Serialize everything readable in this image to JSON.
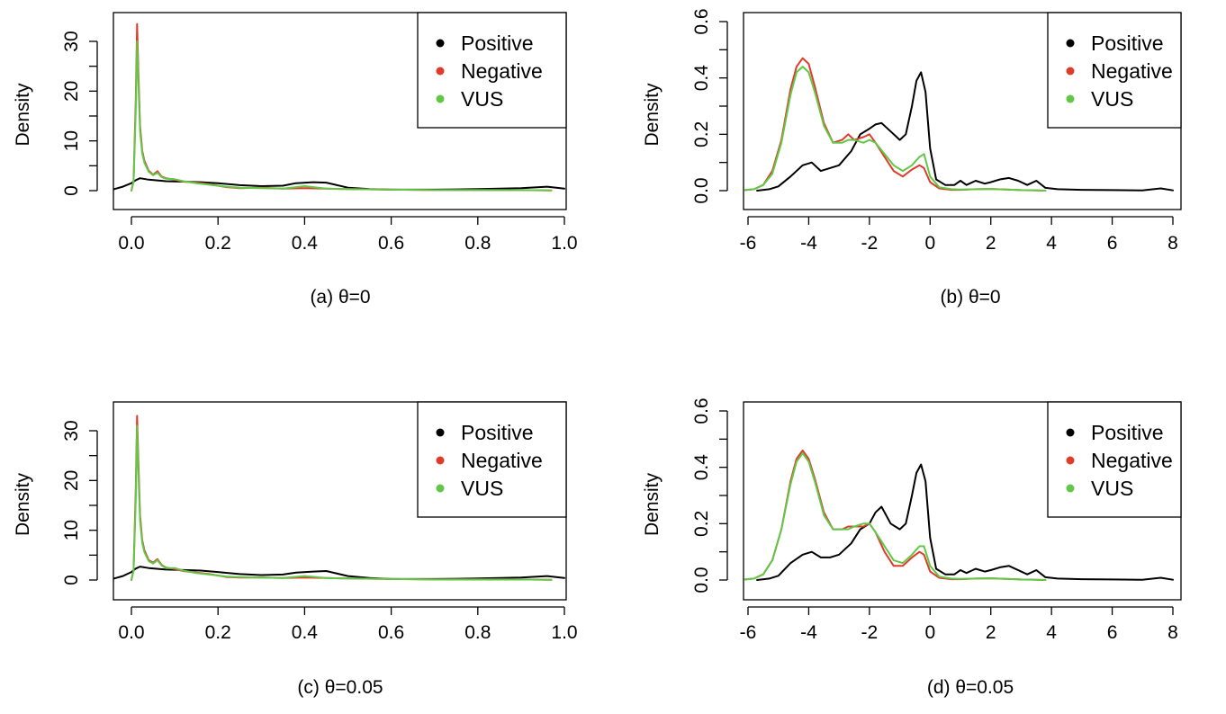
{
  "colors": {
    "Positive": "#000000",
    "Negative": "#DF3B2A",
    "VUS": "#61C847"
  },
  "chart_data": [
    {
      "type": "line",
      "caption": "(a) θ=0",
      "ylabel": "Density",
      "xlim": [
        -0.04,
        1.0
      ],
      "ylim": [
        0,
        33.7
      ],
      "xticks": [
        0.0,
        0.2,
        0.4,
        0.6,
        0.8,
        1.0
      ],
      "xtick_labels": [
        "0.0",
        "0.2",
        "0.4",
        "0.6",
        "0.8",
        "1.0"
      ],
      "yticks": [
        0,
        10,
        20,
        30
      ],
      "ytick_labels": [
        "0",
        "10",
        "20",
        "30"
      ],
      "yminor": [
        5,
        15,
        25
      ],
      "legend": {
        "position": "top-right",
        "entries": [
          "Positive",
          "Negative",
          "VUS"
        ]
      },
      "series": [
        {
          "name": "Positive",
          "x": [
            -0.04,
            -0.02,
            0.0,
            0.01,
            0.02,
            0.04,
            0.08,
            0.12,
            0.16,
            0.2,
            0.25,
            0.3,
            0.35,
            0.38,
            0.42,
            0.45,
            0.5,
            0.55,
            0.6,
            0.7,
            0.8,
            0.9,
            0.96,
            1.0
          ],
          "y": [
            0.3,
            0.8,
            1.5,
            2.1,
            2.5,
            2.2,
            1.9,
            1.8,
            1.7,
            1.5,
            1.1,
            0.9,
            1.0,
            1.5,
            1.7,
            1.6,
            0.6,
            0.3,
            0.2,
            0.2,
            0.3,
            0.5,
            0.8,
            0.4
          ]
        },
        {
          "name": "Negative",
          "x": [
            0.0,
            0.005,
            0.01,
            0.013,
            0.016,
            0.02,
            0.025,
            0.03,
            0.04,
            0.05,
            0.06,
            0.07,
            0.08,
            0.1,
            0.12,
            0.15,
            0.18,
            0.2,
            0.22,
            0.25,
            0.3,
            0.35,
            0.4,
            0.45,
            0.5,
            0.6,
            0.7,
            0.8,
            0.9,
            0.97
          ],
          "y": [
            0,
            2,
            18,
            33.5,
            24,
            13,
            8,
            6,
            4,
            3.2,
            3.9,
            2.8,
            2.5,
            2.2,
            1.8,
            1.6,
            1.3,
            1.0,
            0.7,
            0.5,
            0.6,
            0.4,
            0.5,
            0.4,
            0.3,
            0.2,
            0.1,
            0.1,
            0.1,
            0.05
          ]
        },
        {
          "name": "VUS",
          "x": [
            0.0,
            0.005,
            0.01,
            0.013,
            0.016,
            0.02,
            0.025,
            0.03,
            0.04,
            0.05,
            0.06,
            0.07,
            0.08,
            0.1,
            0.12,
            0.15,
            0.18,
            0.2,
            0.22,
            0.25,
            0.3,
            0.35,
            0.4,
            0.45,
            0.5,
            0.6,
            0.7,
            0.8,
            0.9,
            0.97
          ],
          "y": [
            0,
            1.8,
            16,
            30,
            22,
            12,
            7.5,
            5.6,
            3.8,
            3.1,
            3.6,
            2.7,
            2.4,
            2.3,
            1.9,
            1.5,
            1.2,
            1.0,
            0.8,
            0.6,
            0.5,
            0.4,
            0.9,
            0.4,
            0.3,
            0.2,
            0.1,
            0.1,
            0.1,
            0.05
          ]
        }
      ]
    },
    {
      "type": "line",
      "caption": "(b) θ=0",
      "ylabel": "Density",
      "xlim": [
        -6.2,
        8.2
      ],
      "ylim": [
        0,
        0.61
      ],
      "xticks": [
        -6,
        -4,
        -2,
        0,
        2,
        4,
        6,
        8
      ],
      "xtick_labels": [
        "-6",
        "-4",
        "-2",
        "0",
        "2",
        "4",
        "6",
        "8"
      ],
      "yticks": [
        0.0,
        0.2,
        0.4,
        0.6
      ],
      "ytick_labels": [
        "0.0",
        "0.2",
        "0.4",
        "0.6"
      ],
      "yminor": [
        0.1,
        0.3,
        0.5
      ],
      "legend": {
        "position": "top-right",
        "entries": [
          "Positive",
          "Negative",
          "VUS"
        ]
      },
      "series": [
        {
          "name": "Positive",
          "x": [
            -5.7,
            -5.3,
            -5.0,
            -4.6,
            -4.2,
            -3.9,
            -3.6,
            -3.3,
            -3.0,
            -2.6,
            -2.3,
            -2.0,
            -1.8,
            -1.6,
            -1.3,
            -1.0,
            -0.8,
            -0.6,
            -0.45,
            -0.3,
            -0.15,
            0.0,
            0.2,
            0.5,
            0.8,
            1.0,
            1.2,
            1.5,
            1.8,
            2.0,
            2.3,
            2.6,
            2.9,
            3.2,
            3.5,
            3.8,
            4.2,
            5.0,
            6.0,
            7.0,
            7.6,
            8.0
          ],
          "y": [
            0,
            0.005,
            0.015,
            0.05,
            0.09,
            0.1,
            0.07,
            0.08,
            0.09,
            0.14,
            0.2,
            0.22,
            0.235,
            0.24,
            0.21,
            0.18,
            0.2,
            0.3,
            0.39,
            0.42,
            0.35,
            0.15,
            0.04,
            0.02,
            0.02,
            0.035,
            0.02,
            0.035,
            0.025,
            0.03,
            0.04,
            0.045,
            0.035,
            0.02,
            0.035,
            0.01,
            0.005,
            0.003,
            0.002,
            0.001,
            0.008,
            0.001
          ]
        },
        {
          "name": "Negative",
          "x": [
            -6.1,
            -5.8,
            -5.5,
            -5.2,
            -4.9,
            -4.6,
            -4.4,
            -4.2,
            -4.0,
            -3.8,
            -3.5,
            -3.2,
            -2.9,
            -2.7,
            -2.5,
            -2.2,
            -2.0,
            -1.8,
            -1.5,
            -1.2,
            -0.9,
            -0.6,
            -0.35,
            -0.2,
            0.0,
            0.3,
            0.7,
            1.0,
            1.5,
            2.0,
            2.5,
            3.0,
            3.5,
            3.8
          ],
          "y": [
            0.002,
            0.005,
            0.02,
            0.07,
            0.18,
            0.36,
            0.44,
            0.47,
            0.45,
            0.37,
            0.24,
            0.17,
            0.18,
            0.2,
            0.18,
            0.19,
            0.2,
            0.17,
            0.12,
            0.07,
            0.05,
            0.075,
            0.09,
            0.08,
            0.03,
            0.008,
            0.003,
            0.003,
            0.005,
            0.006,
            0.004,
            0.002,
            0.001,
            0.0
          ]
        },
        {
          "name": "VUS",
          "x": [
            -6.1,
            -5.8,
            -5.5,
            -5.2,
            -4.9,
            -4.6,
            -4.4,
            -4.2,
            -4.0,
            -3.8,
            -3.5,
            -3.2,
            -2.9,
            -2.7,
            -2.5,
            -2.2,
            -2.0,
            -1.8,
            -1.5,
            -1.2,
            -0.9,
            -0.6,
            -0.35,
            -0.2,
            0.0,
            0.3,
            0.7,
            1.0,
            1.5,
            2.0,
            2.5,
            3.0,
            3.5,
            3.8
          ],
          "y": [
            0.002,
            0.005,
            0.02,
            0.06,
            0.17,
            0.34,
            0.42,
            0.44,
            0.42,
            0.35,
            0.23,
            0.17,
            0.17,
            0.18,
            0.18,
            0.17,
            0.18,
            0.17,
            0.13,
            0.09,
            0.07,
            0.09,
            0.12,
            0.13,
            0.05,
            0.012,
            0.005,
            0.004,
            0.005,
            0.006,
            0.004,
            0.002,
            0.001,
            0.0
          ]
        }
      ]
    },
    {
      "type": "line",
      "caption": "(c) θ=0.05",
      "ylabel": "Density",
      "xlim": [
        -0.04,
        1.0
      ],
      "ylim": [
        0,
        33.7
      ],
      "xticks": [
        0.0,
        0.2,
        0.4,
        0.6,
        0.8,
        1.0
      ],
      "xtick_labels": [
        "0.0",
        "0.2",
        "0.4",
        "0.6",
        "0.8",
        "1.0"
      ],
      "yticks": [
        0,
        10,
        20,
        30
      ],
      "ytick_labels": [
        "0",
        "10",
        "20",
        "30"
      ],
      "yminor": [
        5,
        15,
        25
      ],
      "legend": {
        "position": "top-right",
        "entries": [
          "Positive",
          "Negative",
          "VUS"
        ]
      },
      "series": [
        {
          "name": "Positive",
          "x": [
            -0.04,
            -0.02,
            0.0,
            0.01,
            0.02,
            0.04,
            0.08,
            0.12,
            0.16,
            0.2,
            0.25,
            0.3,
            0.35,
            0.38,
            0.42,
            0.45,
            0.5,
            0.55,
            0.6,
            0.7,
            0.8,
            0.9,
            0.96,
            1.0
          ],
          "y": [
            0.3,
            0.8,
            1.6,
            2.3,
            2.7,
            2.4,
            2.1,
            2.0,
            1.9,
            1.6,
            1.2,
            1.0,
            1.1,
            1.5,
            1.7,
            1.8,
            0.8,
            0.4,
            0.2,
            0.2,
            0.3,
            0.5,
            0.8,
            0.4
          ]
        },
        {
          "name": "Negative",
          "x": [
            0.0,
            0.005,
            0.01,
            0.013,
            0.016,
            0.02,
            0.025,
            0.03,
            0.04,
            0.05,
            0.06,
            0.07,
            0.08,
            0.1,
            0.12,
            0.15,
            0.18,
            0.2,
            0.22,
            0.25,
            0.3,
            0.35,
            0.4,
            0.45,
            0.5,
            0.6,
            0.7,
            0.8,
            0.9,
            0.97
          ],
          "y": [
            0,
            2,
            18,
            33,
            24,
            13,
            8,
            6,
            4,
            3.5,
            4.2,
            3.0,
            2.5,
            2.2,
            1.8,
            1.5,
            1.2,
            0.9,
            0.6,
            0.5,
            0.5,
            0.4,
            0.5,
            0.4,
            0.3,
            0.2,
            0.1,
            0.1,
            0.1,
            0.05
          ]
        },
        {
          "name": "VUS",
          "x": [
            0.0,
            0.005,
            0.01,
            0.013,
            0.016,
            0.02,
            0.025,
            0.03,
            0.04,
            0.05,
            0.06,
            0.07,
            0.08,
            0.1,
            0.12,
            0.15,
            0.18,
            0.2,
            0.22,
            0.25,
            0.3,
            0.35,
            0.4,
            0.45,
            0.5,
            0.6,
            0.7,
            0.8,
            0.9,
            0.97
          ],
          "y": [
            0,
            1.8,
            16,
            31,
            22,
            12,
            7.5,
            5.6,
            3.8,
            3.3,
            4.0,
            2.9,
            2.4,
            2.4,
            1.9,
            1.4,
            1.1,
            0.9,
            0.7,
            0.6,
            0.5,
            0.4,
            0.8,
            0.4,
            0.3,
            0.2,
            0.1,
            0.1,
            0.1,
            0.05
          ]
        }
      ]
    },
    {
      "type": "line",
      "caption": "(d) θ=0.05",
      "ylabel": "Density",
      "xlim": [
        -6.2,
        8.2
      ],
      "ylim": [
        0,
        0.61
      ],
      "xticks": [
        -6,
        -4,
        -2,
        0,
        2,
        4,
        6,
        8
      ],
      "xtick_labels": [
        "-6",
        "-4",
        "-2",
        "0",
        "2",
        "4",
        "6",
        "8"
      ],
      "yticks": [
        0.0,
        0.2,
        0.4,
        0.6
      ],
      "ytick_labels": [
        "0.0",
        "0.2",
        "0.4",
        "0.6"
      ],
      "yminor": [
        0.1,
        0.3,
        0.5
      ],
      "legend": {
        "position": "top-right",
        "entries": [
          "Positive",
          "Negative",
          "VUS"
        ]
      },
      "series": [
        {
          "name": "Positive",
          "x": [
            -5.7,
            -5.3,
            -5.0,
            -4.6,
            -4.2,
            -3.9,
            -3.6,
            -3.3,
            -3.0,
            -2.6,
            -2.3,
            -2.0,
            -1.8,
            -1.6,
            -1.3,
            -1.0,
            -0.8,
            -0.6,
            -0.45,
            -0.3,
            -0.15,
            0.0,
            0.2,
            0.5,
            0.8,
            1.0,
            1.2,
            1.5,
            1.8,
            2.0,
            2.3,
            2.6,
            2.9,
            3.2,
            3.5,
            3.8,
            4.2,
            5.0,
            6.0,
            7.0,
            7.6,
            8.0
          ],
          "y": [
            0,
            0.005,
            0.015,
            0.06,
            0.09,
            0.1,
            0.08,
            0.08,
            0.09,
            0.13,
            0.18,
            0.2,
            0.24,
            0.26,
            0.2,
            0.18,
            0.2,
            0.3,
            0.38,
            0.41,
            0.35,
            0.15,
            0.04,
            0.02,
            0.02,
            0.035,
            0.025,
            0.04,
            0.03,
            0.035,
            0.045,
            0.05,
            0.035,
            0.02,
            0.035,
            0.01,
            0.005,
            0.003,
            0.002,
            0.001,
            0.008,
            0.001
          ]
        },
        {
          "name": "Negative",
          "x": [
            -6.1,
            -5.8,
            -5.5,
            -5.2,
            -4.9,
            -4.6,
            -4.4,
            -4.2,
            -4.0,
            -3.8,
            -3.5,
            -3.2,
            -2.9,
            -2.7,
            -2.5,
            -2.2,
            -2.0,
            -1.8,
            -1.5,
            -1.2,
            -0.9,
            -0.6,
            -0.35,
            -0.2,
            0.0,
            0.3,
            0.7,
            1.0,
            1.5,
            2.0,
            2.5,
            3.0,
            3.5,
            3.8
          ],
          "y": [
            0.002,
            0.005,
            0.02,
            0.07,
            0.18,
            0.35,
            0.43,
            0.46,
            0.43,
            0.36,
            0.24,
            0.18,
            0.18,
            0.19,
            0.19,
            0.19,
            0.2,
            0.17,
            0.1,
            0.05,
            0.05,
            0.08,
            0.1,
            0.09,
            0.03,
            0.008,
            0.003,
            0.003,
            0.005,
            0.006,
            0.004,
            0.002,
            0.001,
            0.0
          ]
        },
        {
          "name": "VUS",
          "x": [
            -6.1,
            -5.8,
            -5.5,
            -5.2,
            -4.9,
            -4.6,
            -4.4,
            -4.2,
            -4.0,
            -3.8,
            -3.5,
            -3.2,
            -2.9,
            -2.7,
            -2.5,
            -2.2,
            -2.0,
            -1.8,
            -1.5,
            -1.2,
            -0.9,
            -0.6,
            -0.35,
            -0.2,
            0.0,
            0.3,
            0.7,
            1.0,
            1.5,
            2.0,
            2.5,
            3.0,
            3.5,
            3.8
          ],
          "y": [
            0.002,
            0.005,
            0.02,
            0.07,
            0.18,
            0.34,
            0.42,
            0.45,
            0.42,
            0.35,
            0.23,
            0.18,
            0.18,
            0.18,
            0.19,
            0.2,
            0.2,
            0.17,
            0.12,
            0.07,
            0.06,
            0.09,
            0.12,
            0.12,
            0.05,
            0.012,
            0.005,
            0.004,
            0.005,
            0.006,
            0.004,
            0.002,
            0.001,
            0.0
          ]
        }
      ]
    }
  ]
}
